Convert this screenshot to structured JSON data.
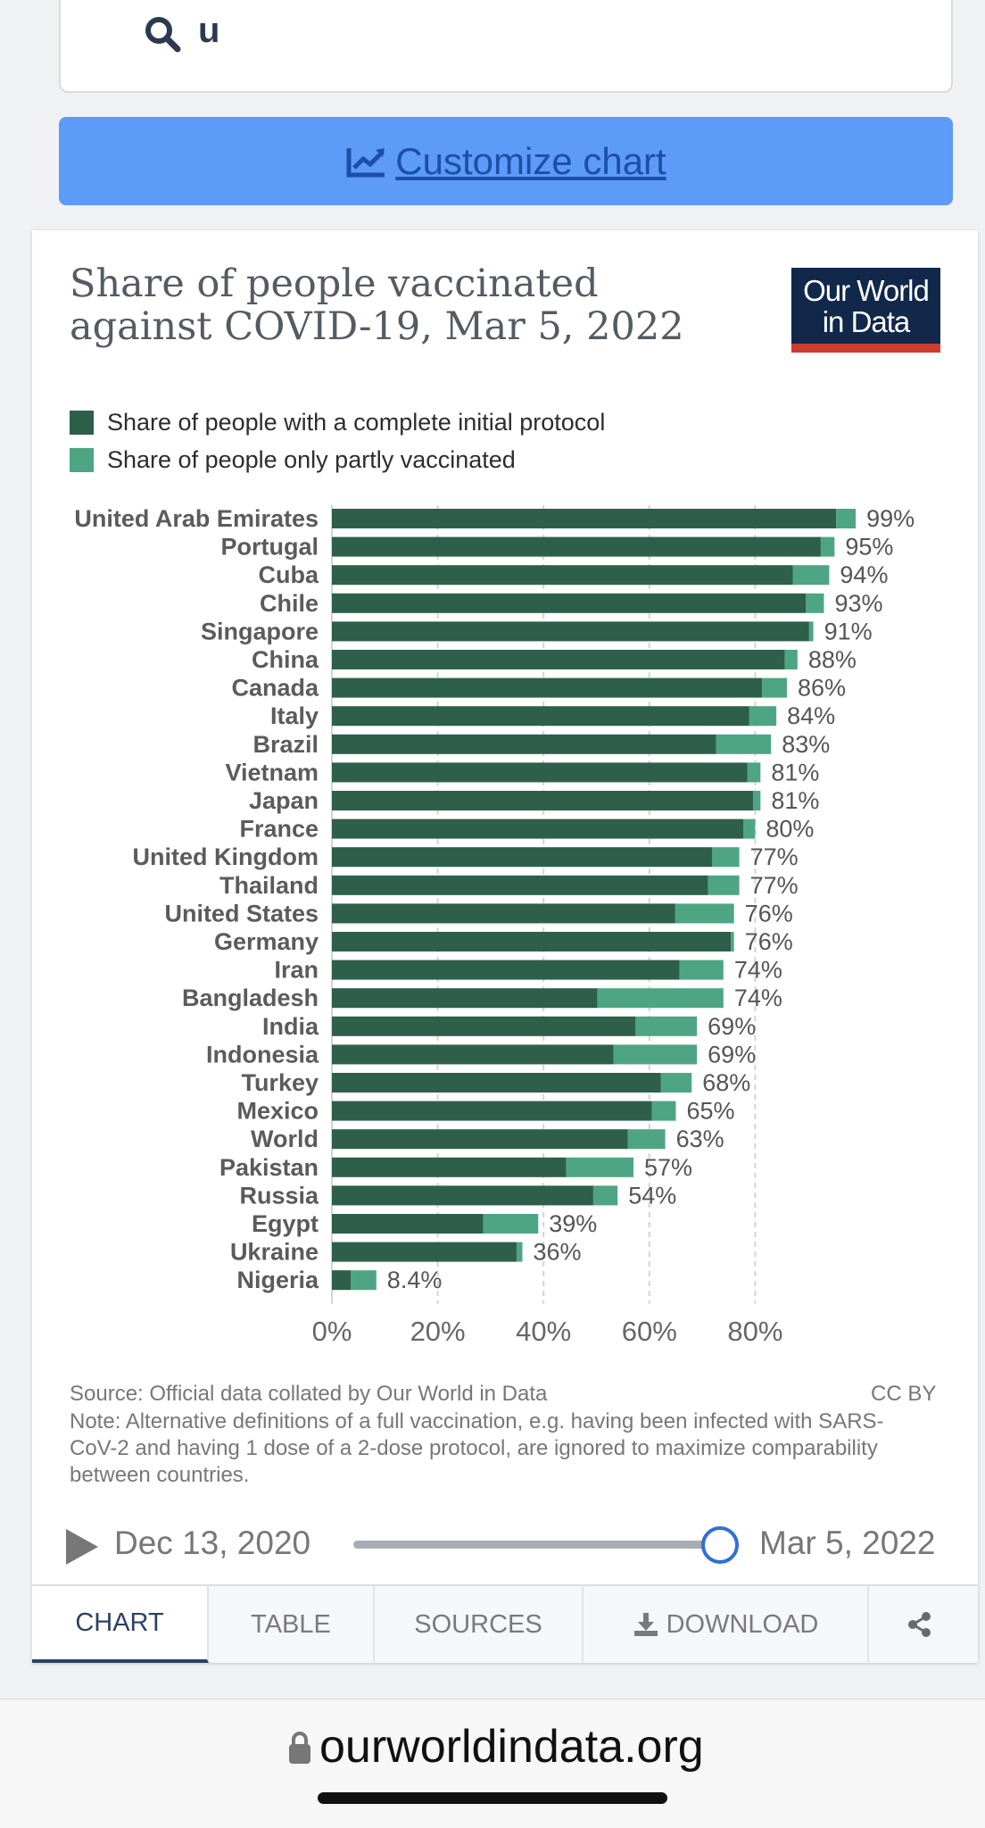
{
  "search": {
    "value": "u"
  },
  "customize": {
    "label": "Customize chart"
  },
  "title": "Share of people vaccinated against COVID-19, Mar 5, 2022",
  "logo": {
    "line1": "Our World",
    "line2": "in Data"
  },
  "legend": [
    {
      "label": "Share of people with a complete initial protocol",
      "color": "#2e5f4b"
    },
    {
      "label": "Share of people only partly vaccinated",
      "color": "#4ea584"
    }
  ],
  "chart_data": {
    "type": "bar",
    "orientation": "horizontal",
    "stacked": true,
    "categories": [
      "United Arab Emirates",
      "Portugal",
      "Cuba",
      "Chile",
      "Singapore",
      "China",
      "Canada",
      "Italy",
      "Brazil",
      "Vietnam",
      "Japan",
      "France",
      "United Kingdom",
      "Thailand",
      "United States",
      "Germany",
      "Iran",
      "Bangladesh",
      "India",
      "Indonesia",
      "Turkey",
      "Mexico",
      "World",
      "Pakistan",
      "Russia",
      "Egypt",
      "Ukraine",
      "Nigeria"
    ],
    "series": [
      {
        "name": "Share of people with a complete initial protocol",
        "values": [
          95.3,
          92.4,
          87.1,
          89.6,
          90.2,
          85.6,
          81.3,
          78.9,
          72.6,
          78.5,
          79.6,
          77.8,
          71.9,
          71.1,
          64.9,
          75.4,
          65.7,
          50.2,
          57.4,
          53.2,
          62.2,
          60.5,
          55.9,
          44.3,
          49.4,
          28.6,
          34.9,
          3.6
        ]
      },
      {
        "name": "Share of people only partly vaccinated",
        "values": [
          3.7,
          2.6,
          6.9,
          3.4,
          0.8,
          2.4,
          4.7,
          5.1,
          10.4,
          2.5,
          1.4,
          2.2,
          5.1,
          5.9,
          11.1,
          0.6,
          8.3,
          23.8,
          11.6,
          15.8,
          5.8,
          4.5,
          7.1,
          12.7,
          4.6,
          10.4,
          1.1,
          4.8
        ]
      }
    ],
    "totals_labels": [
      "99%",
      "95%",
      "94%",
      "93%",
      "91%",
      "88%",
      "86%",
      "84%",
      "83%",
      "81%",
      "81%",
      "80%",
      "77%",
      "77%",
      "76%",
      "76%",
      "74%",
      "74%",
      "69%",
      "69%",
      "68%",
      "65%",
      "63%",
      "57%",
      "54%",
      "39%",
      "36%",
      "8.4%"
    ],
    "x_ticks": [
      "0%",
      "20%",
      "40%",
      "60%",
      "80%"
    ],
    "xlim": [
      0,
      100
    ],
    "grid": "vertical dashed"
  },
  "source": "Source: Official data collated by Our World in Data",
  "license": "CC BY",
  "note": "Note: Alternative definitions of a full vaccination, e.g. having been infected with SARS-CoV-2 and having 1 dose of a 2-dose protocol, are ignored to maximize comparability between countries.",
  "timeline": {
    "start": "Dec 13, 2020",
    "end": "Mar 5, 2022",
    "position": 1.0
  },
  "tabs": [
    {
      "label": "CHART",
      "active": true
    },
    {
      "label": "TABLE",
      "active": false
    },
    {
      "label": "SOURCES",
      "active": false
    },
    {
      "label": "DOWNLOAD",
      "active": false,
      "icon": "download-icon"
    },
    {
      "label": "",
      "active": false,
      "icon": "share-icon"
    }
  ],
  "browser": {
    "url": "ourworldindata.org"
  }
}
